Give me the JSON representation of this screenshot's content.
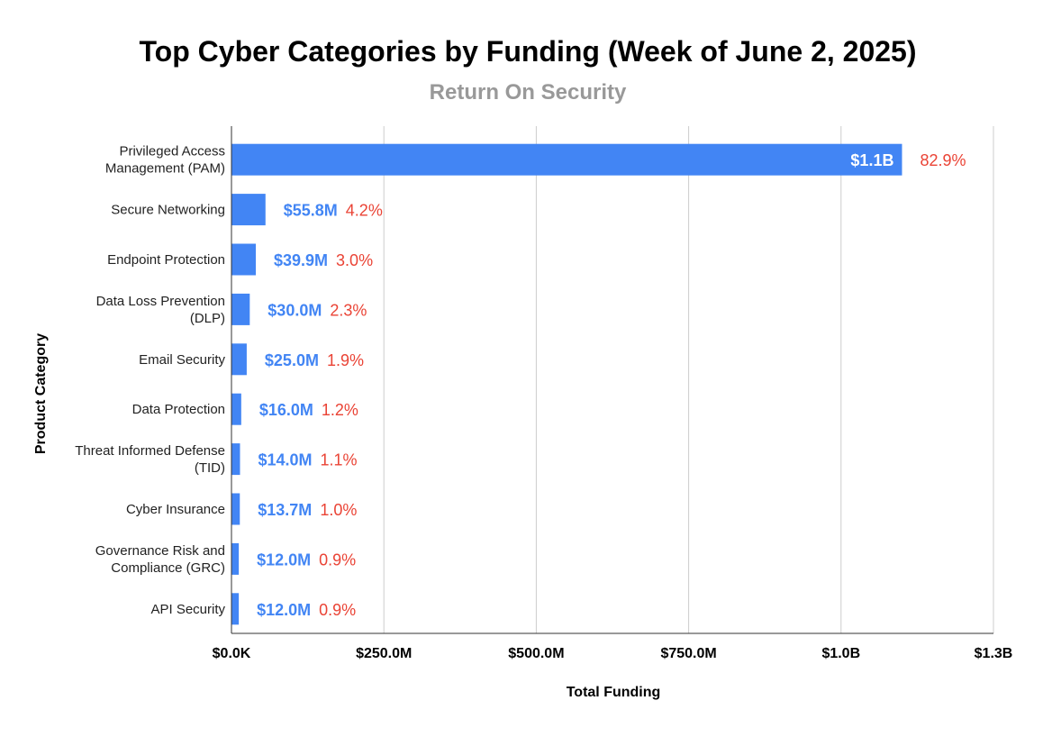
{
  "chart_data": {
    "type": "bar",
    "orientation": "horizontal",
    "title": "Top Cyber Categories by Funding (Week of June 2, 2025)",
    "subtitle": "Return On Security",
    "xlabel": "Total Funding",
    "ylabel": "Product Category",
    "categories": [
      [
        "Privileged Access",
        "Management (PAM)"
      ],
      [
        "Secure Networking"
      ],
      [
        "Endpoint Protection"
      ],
      [
        "Data Loss Prevention",
        "(DLP)"
      ],
      [
        "Email Security"
      ],
      [
        "Data Protection"
      ],
      [
        "Threat Informed Defense",
        "(TID)"
      ],
      [
        "Cyber Insurance"
      ],
      [
        "Governance Risk and",
        "Compliance (GRC)"
      ],
      [
        "API Security"
      ]
    ],
    "values": [
      1100,
      55.8,
      39.9,
      30.0,
      25.0,
      16.0,
      14.0,
      13.7,
      12.0,
      12.0
    ],
    "value_units": "millions USD",
    "value_labels": [
      "$1.1B",
      "$55.8M",
      "$39.9M",
      "$30.0M",
      "$25.0M",
      "$16.0M",
      "$14.0M",
      "$13.7M",
      "$12.0M",
      "$12.0M"
    ],
    "percent_labels": [
      "82.9%",
      "4.2%",
      "3.0%",
      "2.3%",
      "1.9%",
      "1.2%",
      "1.1%",
      "1.0%",
      "0.9%",
      "0.9%"
    ],
    "x_ticks": [
      0,
      250,
      500,
      750,
      1000,
      1250
    ],
    "x_tick_labels": [
      "$0.0K",
      "$250.0M",
      "$500.0M",
      "$750.0M",
      "$1.0B",
      "$1.3B"
    ],
    "xlim": [
      0,
      1250
    ],
    "grid": true,
    "legend": "none",
    "colors": {
      "bar": "#4285f4",
      "value_label": "#4285f4",
      "percent_label": "#ea4335",
      "grid": "#cccccc",
      "axis": "#333333"
    }
  }
}
